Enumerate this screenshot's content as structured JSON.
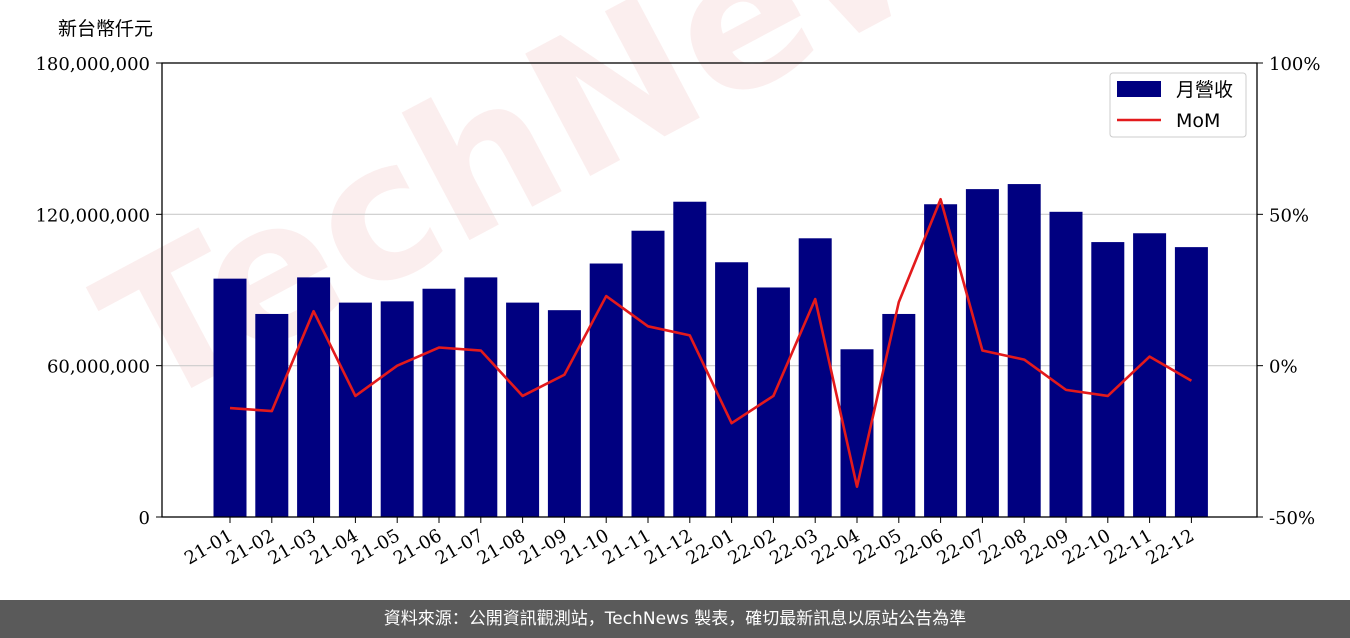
{
  "unit_label": "新台幣仟元",
  "footer_text": "資料來源：公開資訊觀測站，TechNews 製表，確切最新訊息以原站公告為準",
  "watermark_text": "TechNews",
  "colors": {
    "bar": "#000080",
    "line": "#e31a1c",
    "grid": "#cccccc",
    "footer_bg": "#5a5a5a"
  },
  "chart_data": {
    "type": "bar",
    "categories": [
      "21-01",
      "21-02",
      "21-03",
      "21-04",
      "21-05",
      "21-06",
      "21-07",
      "21-08",
      "21-09",
      "21-10",
      "21-11",
      "21-12",
      "22-01",
      "22-02",
      "22-03",
      "22-04",
      "22-05",
      "22-06",
      "22-07",
      "22-08",
      "22-09",
      "22-10",
      "22-11",
      "22-12"
    ],
    "series": [
      {
        "name": "月營收",
        "type": "bar",
        "axis": "left",
        "values": [
          94500000,
          80500000,
          95000000,
          85000000,
          85500000,
          90500000,
          95000000,
          85000000,
          82000000,
          100500000,
          113500000,
          125000000,
          101000000,
          91000000,
          110500000,
          66500000,
          80500000,
          124000000,
          130000000,
          132000000,
          121000000,
          109000000,
          112500000,
          107000000
        ]
      },
      {
        "name": "MoM",
        "type": "line",
        "axis": "right",
        "values": [
          -14,
          -15,
          18,
          -10,
          0,
          6,
          5,
          -10,
          -3,
          23,
          13,
          10,
          -19,
          -10,
          22,
          -40,
          21,
          55,
          5,
          2,
          -8,
          -10,
          3,
          -5
        ]
      }
    ],
    "left_axis": {
      "ylim": [
        0,
        180000000
      ],
      "ticks": [
        "0",
        "60,000,000",
        "120,000,000",
        "180,000,000"
      ],
      "tick_values": [
        0,
        60000000,
        120000000,
        180000000
      ]
    },
    "right_axis": {
      "ylim": [
        -50,
        100
      ],
      "ticks": [
        "-50%",
        "0%",
        "50%",
        "100%"
      ],
      "tick_values": [
        -50,
        0,
        50,
        100
      ]
    },
    "grid": "horizontal",
    "legend_position": "top-right"
  }
}
